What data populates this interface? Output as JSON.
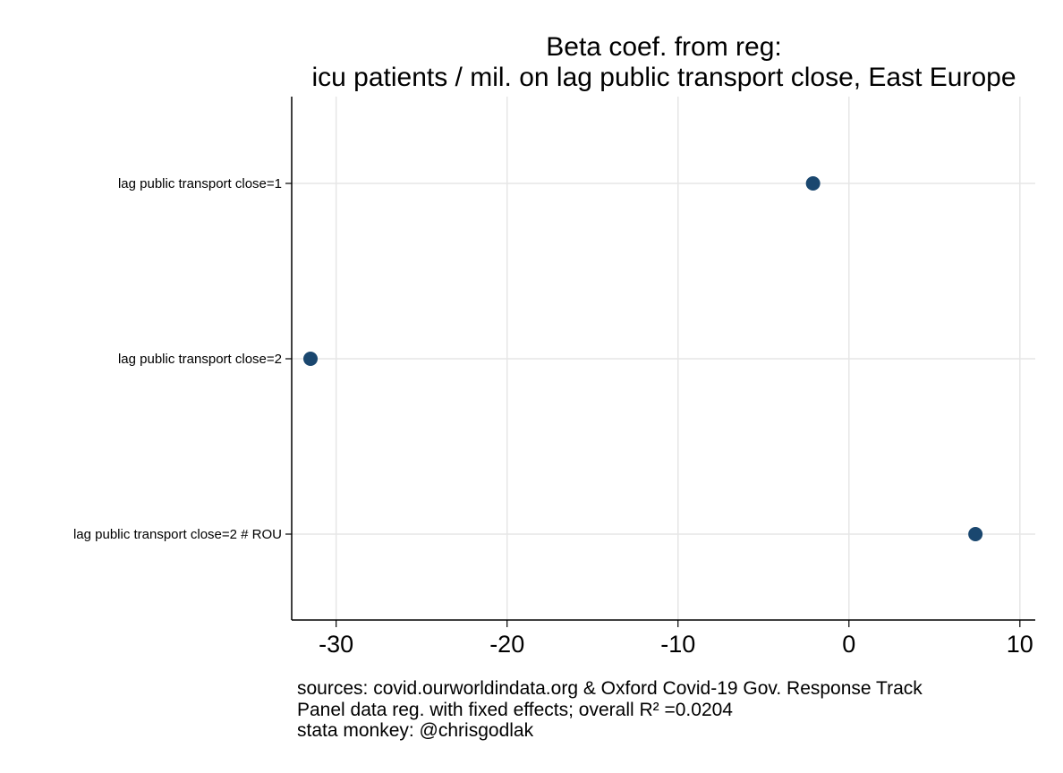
{
  "chart_data": {
    "type": "scatter",
    "title_lines": [
      "Beta coef. from reg:",
      "icu patients / mil. on lag public transport close, East Europe"
    ],
    "categories": [
      "lag public transport close=1",
      "lag public transport close=2",
      "lag public transport close=2 # ROU"
    ],
    "values": [
      -2.1,
      -31.5,
      7.4
    ],
    "xlim": [
      -32.6,
      10.9
    ],
    "xticks": [
      -30,
      -20,
      -10,
      0,
      10
    ],
    "xtick_labels": [
      "-30",
      "-20",
      "-10",
      "0",
      "10"
    ],
    "xlabel": "",
    "ylabel": "",
    "grid": true,
    "marker_color": "#1a476f",
    "notes": [
      "sources: covid.ourworldindata.org & Oxford Covid-19 Gov. Response Track",
      "Panel data reg. with fixed effects; overall R² =0.0204",
      "stata monkey: @chrisgodlak"
    ]
  }
}
